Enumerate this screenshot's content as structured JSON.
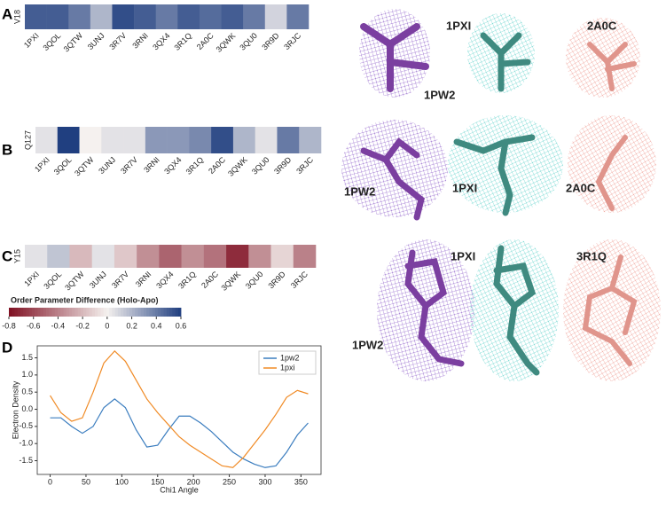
{
  "panels": [
    "A",
    "B",
    "C",
    "D"
  ],
  "structure_labels": [
    "1PXI",
    "2A0C",
    "1PW2",
    "1PW2",
    "1PXI",
    "2A0C",
    "1PW2",
    "1PXI",
    "3R1Q"
  ],
  "chart_data": [
    {
      "type": "heatmap",
      "ylabel": "V18",
      "categories": [
        "1PXI",
        "3QOL",
        "3QTW",
        "3UNJ",
        "3R7V",
        "3RNI",
        "3QX4",
        "3R1Q",
        "2A0C",
        "3QWK",
        "3QU0",
        "3R9D",
        "3RJC"
      ],
      "values": [
        0.5,
        0.5,
        0.4,
        0.2,
        0.55,
        0.5,
        0.4,
        0.5,
        0.45,
        0.5,
        0.4,
        0.1,
        0.4
      ],
      "cmap": [
        "#7f1022",
        "#f5f1ef",
        "#203f80"
      ],
      "clim": [
        -0.8,
        0.6
      ]
    },
    {
      "type": "heatmap",
      "ylabel": "Q127",
      "categories": [
        "1PXI",
        "3QOL",
        "3QTW",
        "3UNJ",
        "3R7V",
        "3RNI",
        "3QX4",
        "3R1Q",
        "2A0C",
        "3QWK",
        "3QU0",
        "3R9D",
        "3RJC"
      ],
      "values": [
        0.05,
        0.6,
        0.0,
        0.05,
        0.05,
        0.3,
        0.3,
        0.35,
        0.55,
        0.2,
        0.05,
        0.4,
        0.2
      ],
      "cmap": [
        "#7f1022",
        "#f5f1ef",
        "#203f80"
      ],
      "clim": [
        -0.8,
        0.6
      ]
    },
    {
      "type": "heatmap",
      "ylabel": "Y15",
      "categories": [
        "1PXI",
        "3QOL",
        "3QTW",
        "3UNJ",
        "3R7V",
        "3RNI",
        "3QX4",
        "3R1Q",
        "2A0C",
        "3QWK",
        "3QU0",
        "3R9D",
        "3RJC"
      ],
      "values": [
        0.05,
        0.15,
        -0.2,
        0.05,
        -0.15,
        -0.35,
        -0.5,
        -0.35,
        -0.45,
        -0.7,
        -0.35,
        -0.1,
        -0.4
      ],
      "cmap": [
        "#7f1022",
        "#f5f1ef",
        "#203f80"
      ],
      "clim": [
        -0.8,
        0.6
      ]
    },
    {
      "type": "colorbar",
      "title": "Order Parameter Difference (Holo-Apo)",
      "xlim": [
        -0.8,
        0.6
      ],
      "xticks": [
        -0.8,
        -0.6,
        -0.4,
        -0.2,
        0,
        0.2,
        0.4,
        0.6
      ],
      "cmap": [
        "#7f1022",
        "#f5f1ef",
        "#203f80"
      ]
    },
    {
      "type": "line",
      "xlabel": "Chi1 Angle",
      "ylabel": "Electron Density",
      "x": [
        0,
        15,
        30,
        45,
        60,
        75,
        90,
        105,
        120,
        135,
        150,
        165,
        180,
        195,
        210,
        225,
        240,
        255,
        270,
        285,
        300,
        315,
        330,
        345,
        360
      ],
      "series": [
        {
          "name": "1pw2",
          "color": "#3b7dbf",
          "values": [
            -0.25,
            -0.25,
            -0.5,
            -0.7,
            -0.5,
            0.05,
            0.3,
            0.05,
            -0.6,
            -1.1,
            -1.05,
            -0.6,
            -0.2,
            -0.2,
            -0.4,
            -0.65,
            -0.95,
            -1.25,
            -1.45,
            -1.6,
            -1.7,
            -1.65,
            -1.25,
            -0.75,
            -0.4
          ]
        },
        {
          "name": "1pxi",
          "color": "#f08a24",
          "values": [
            0.4,
            -0.1,
            -0.35,
            -0.25,
            0.5,
            1.35,
            1.7,
            1.4,
            0.85,
            0.3,
            -0.1,
            -0.45,
            -0.8,
            -1.05,
            -1.25,
            -1.45,
            -1.65,
            -1.7,
            -1.4,
            -1.0,
            -0.6,
            -0.15,
            0.35,
            0.55,
            0.45
          ]
        }
      ],
      "xlim": [
        -18,
        378
      ],
      "ylim": [
        -1.9,
        1.85
      ],
      "xticks": [
        0,
        50,
        100,
        150,
        200,
        250,
        300,
        350
      ],
      "yticks": [
        {
          "value": -1.5,
          "label": "-1.5"
        },
        {
          "value": -1,
          "label": "-1.0"
        },
        {
          "value": -0.5,
          "label": "-0.5"
        },
        {
          "value": 0,
          "label": "0.0"
        },
        {
          "value": 0.5,
          "label": "0.5"
        },
        {
          "value": 1,
          "label": "1.0"
        },
        {
          "value": 1.5,
          "label": "1.5"
        }
      ],
      "legend": "upper-right"
    }
  ]
}
